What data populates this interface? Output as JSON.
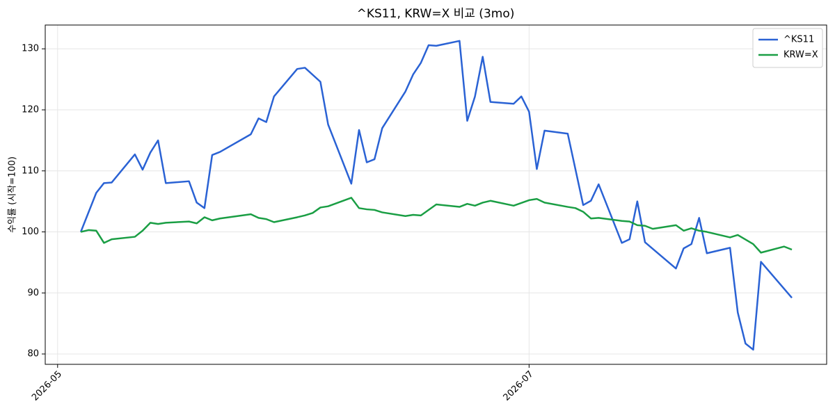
{
  "chart_data": {
    "type": "line",
    "title": "^KS11, KRW=X 비교 (3mo)",
    "y_label": "수익률 (시작=100)",
    "xlim": [
      20572.4,
      20673.5
    ],
    "xticks": [
      {
        "value": 20574,
        "label": "2026-05"
      },
      {
        "value": 20635,
        "label": "2026-07"
      }
    ],
    "ylim": [
      78.3,
      133.9
    ],
    "yticks": [
      80,
      90,
      100,
      110,
      120,
      130
    ],
    "grid": true,
    "legend": "upper right",
    "series": [
      {
        "name": "^KS11",
        "color": "#2a62d4",
        "x": [
          20577,
          20579,
          20580,
          20581,
          20584,
          20585,
          20586,
          20587,
          20588,
          20591,
          20592,
          20593,
          20594,
          20595,
          20599,
          20600,
          20601,
          20602,
          20605,
          20606,
          20608,
          20609,
          20612,
          20613,
          20614,
          20615,
          20616,
          20619,
          20620,
          20621,
          20622,
          20623,
          20626,
          20627,
          20628,
          20629,
          20630,
          20633,
          20634,
          20635,
          20636,
          20637,
          20640,
          20642,
          20643,
          20644,
          20647,
          20648,
          20649,
          20650,
          20654,
          20655,
          20656,
          20657,
          20658,
          20661,
          20662,
          20663,
          20664,
          20665,
          20669
        ],
        "values": [
          100,
          106.4,
          108,
          108.1,
          112.7,
          110.2,
          113,
          115,
          108,
          108.3,
          104.8,
          103.9,
          112.6,
          113.1,
          116,
          118.6,
          118,
          122.2,
          126.7,
          126.9,
          124.6,
          117.6,
          107.9,
          116.7,
          111.4,
          111.9,
          117,
          123,
          125.8,
          127.7,
          130.6,
          130.5,
          131.3,
          118.2,
          122.2,
          128.7,
          121.3,
          121,
          122.2,
          119.7,
          110.3,
          116.6,
          116.1,
          104.4,
          105.1,
          107.8,
          98.2,
          98.8,
          105,
          98.3,
          94,
          97.3,
          98,
          102.3,
          96.5,
          97.4,
          86.8,
          81.7,
          80.7,
          95.1,
          89.2
        ]
      },
      {
        "name": "KRW=X",
        "color": "#1a9e44",
        "x": [
          20577,
          20578,
          20579,
          20580,
          20581,
          20584,
          20585,
          20586,
          20587,
          20588,
          20591,
          20592,
          20593,
          20594,
          20595,
          20599,
          20600,
          20601,
          20602,
          20605,
          20606,
          20607,
          20608,
          20609,
          20612,
          20613,
          20614,
          20615,
          20616,
          20619,
          20620,
          20621,
          20623,
          20626,
          20627,
          20628,
          20629,
          20630,
          20633,
          20635,
          20636,
          20637,
          20640,
          20641,
          20642,
          20643,
          20644,
          20647,
          20648,
          20649,
          20650,
          20651,
          20654,
          20655,
          20656,
          20657,
          20658,
          20661,
          20662,
          20664,
          20665,
          20668,
          20669
        ],
        "values": [
          100,
          100.3,
          100.2,
          98.2,
          98.8,
          99.2,
          100.2,
          101.5,
          101.3,
          101.5,
          101.7,
          101.4,
          102.4,
          101.9,
          102.2,
          102.9,
          102.3,
          102.1,
          101.6,
          102.4,
          102.7,
          103.1,
          104,
          104.2,
          105.6,
          103.9,
          103.7,
          103.6,
          103.2,
          102.6,
          102.8,
          102.7,
          104.5,
          104.1,
          104.6,
          104.3,
          104.8,
          105.1,
          104.3,
          105.2,
          105.4,
          104.8,
          104.1,
          103.9,
          103.3,
          102.2,
          102.3,
          101.8,
          101.7,
          101.1,
          101,
          100.5,
          101.1,
          100.2,
          100.6,
          100.2,
          100,
          99.1,
          99.5,
          98,
          96.6,
          97.6,
          97.1
        ]
      }
    ]
  }
}
